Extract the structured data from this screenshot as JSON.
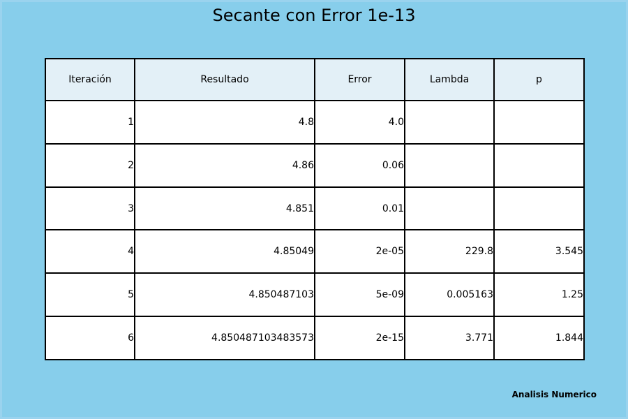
{
  "title": "Secante con Error 1e-13",
  "footer": "Analisis Numerico",
  "chart_data": {
    "type": "table",
    "columns": [
      "Iteración",
      "Resultado",
      "Error",
      "Lambda",
      "p"
    ],
    "rows": [
      [
        "1",
        "4.8",
        "4.0",
        "",
        ""
      ],
      [
        "2",
        "4.86",
        "0.06",
        "",
        ""
      ],
      [
        "3",
        "4.851",
        "0.01",
        "",
        ""
      ],
      [
        "4",
        "4.85049",
        "2e-05",
        "229.8",
        "3.545"
      ],
      [
        "5",
        "4.850487103",
        "5e-09",
        "0.005163",
        "1.25"
      ],
      [
        "6",
        "4.850487103483573",
        "2e-15",
        "3.771",
        "1.844"
      ]
    ]
  },
  "colors": {
    "background": "#87ceeb",
    "header_fill": "#e3f0f7",
    "cell_fill": "#ffffff"
  }
}
